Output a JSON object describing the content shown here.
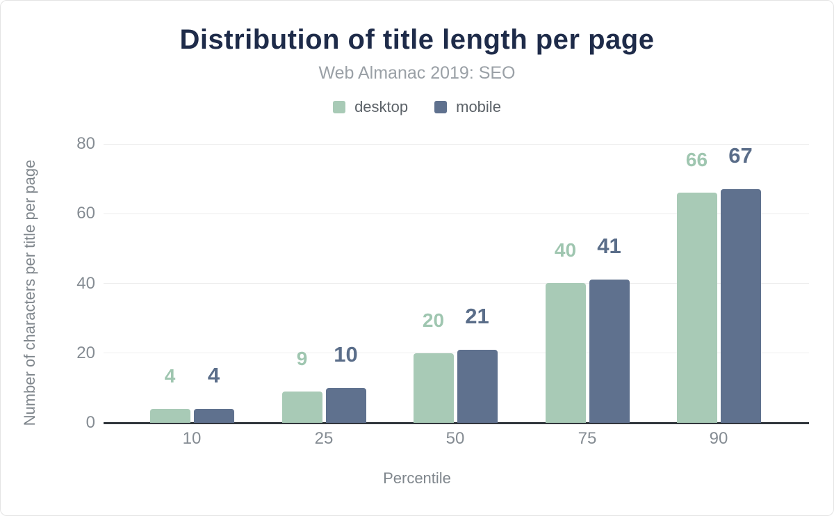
{
  "figure": {
    "title": "Distribution of title length per page",
    "subtitle": "Web Almanac 2019: SEO"
  },
  "legend": [
    {
      "label": "desktop",
      "color": "#a8cab6"
    },
    {
      "label": "mobile",
      "color": "#5f718e"
    }
  ],
  "chart_data": {
    "type": "bar",
    "title": "Distribution of title length per page",
    "subtitle": "Web Almanac 2019: SEO",
    "categories": [
      "10",
      "25",
      "50",
      "75",
      "90"
    ],
    "series": [
      {
        "name": "desktop",
        "color": "#a8cab6",
        "label_color": "#9fc6b0",
        "values": [
          4,
          9,
          20,
          40,
          66
        ]
      },
      {
        "name": "mobile",
        "color": "#5f718e",
        "label_color": "#5a6d89",
        "values": [
          4,
          10,
          21,
          41,
          67
        ]
      }
    ],
    "xlabel": "Percentile",
    "ylabel": "Number of characters per title per page",
    "ylim": [
      0,
      80
    ],
    "yticks": [
      0,
      20,
      40,
      60,
      80
    ],
    "grid": true,
    "legend_position": "top",
    "data_labels": true
  },
  "colors": {
    "title": "#1e2b49",
    "subtitle": "#9aa0a6",
    "tick_text": "#858c93",
    "axis_title_text": "#7f868c",
    "gridline": "#ededed",
    "axis_line": "#31363c",
    "background": "#ffffff"
  }
}
